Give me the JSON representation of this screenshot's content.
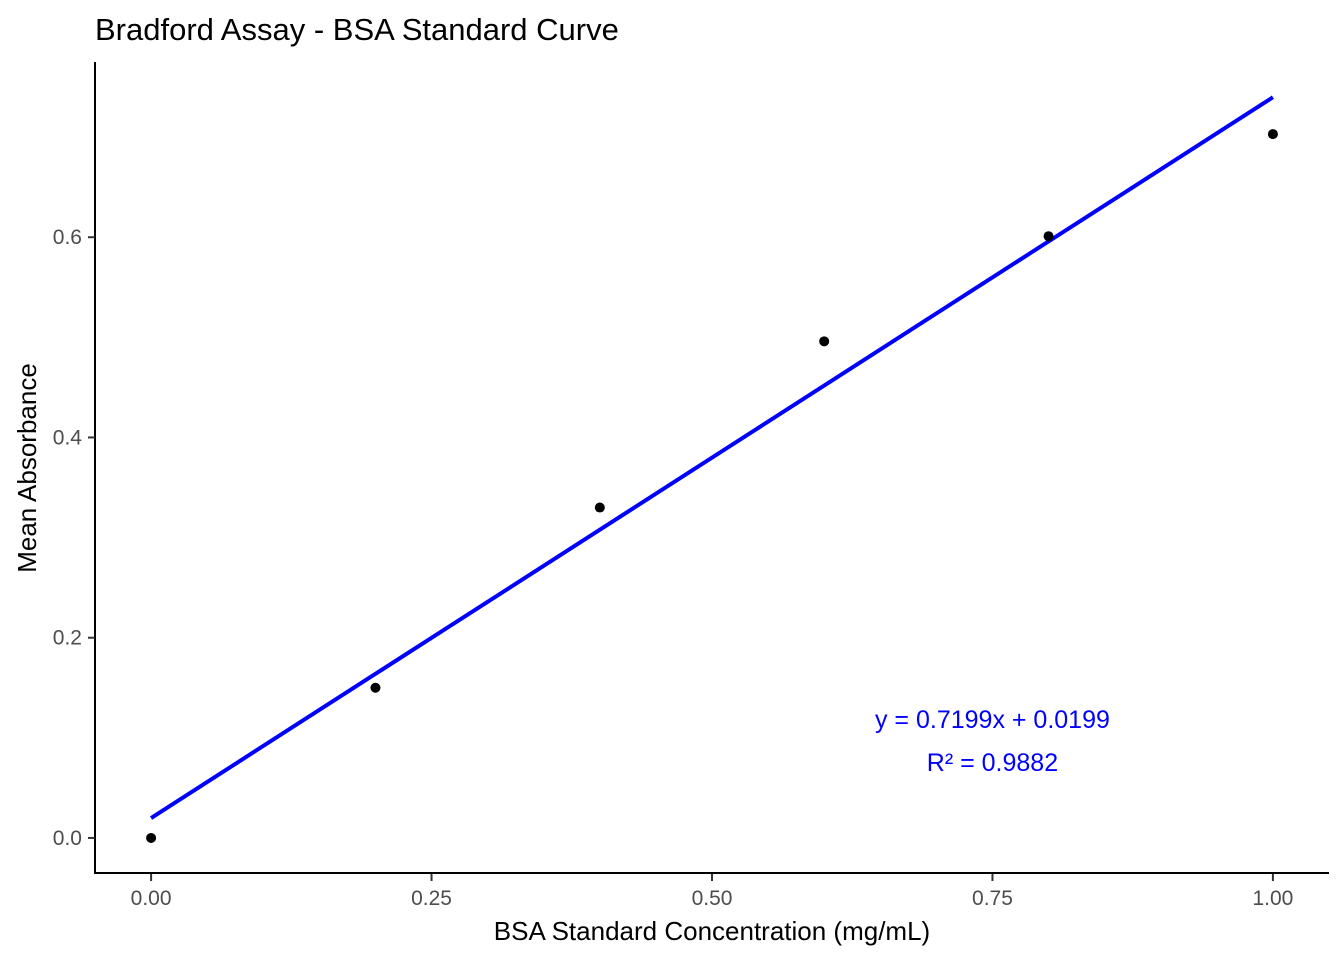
{
  "chart_data": {
    "type": "scatter",
    "title": "Bradford Assay - BSA Standard Curve",
    "xlabel": "BSA Standard Concentration (mg/mL)",
    "ylabel": "Mean Absorbance",
    "xlim": [
      -0.05,
      1.05
    ],
    "ylim": [
      -0.035,
      0.775
    ],
    "x_ticks": [
      0,
      0.25,
      0.5,
      0.75,
      1
    ],
    "x_tick_labels": [
      "0.00",
      "0.25",
      "0.50",
      "0.75",
      "1.00"
    ],
    "y_ticks": [
      0,
      0.2,
      0.4,
      0.6
    ],
    "y_tick_labels": [
      "0.0",
      "0.2",
      "0.4",
      "0.6"
    ],
    "grid": false,
    "legend": "none",
    "series": [
      {
        "x": [
          0.0,
          0.2,
          0.4,
          0.6,
          0.8,
          1.0
        ],
        "y": [
          0.0,
          0.15,
          0.33,
          0.496,
          0.601,
          0.703
        ],
        "color": "#000000"
      }
    ],
    "fit": {
      "slope": 0.7199,
      "intercept": 0.0199,
      "x_range": [
        0,
        1
      ],
      "color": "#0000ff"
    },
    "annotations": [
      {
        "text": "y = 0.7199x + 0.0199",
        "x": 0.75,
        "y": 0.119,
        "color": "#0000ff"
      },
      {
        "text": "R² =  0.9882",
        "x": 0.75,
        "y": 0.076,
        "color": "#0000ff"
      }
    ]
  }
}
